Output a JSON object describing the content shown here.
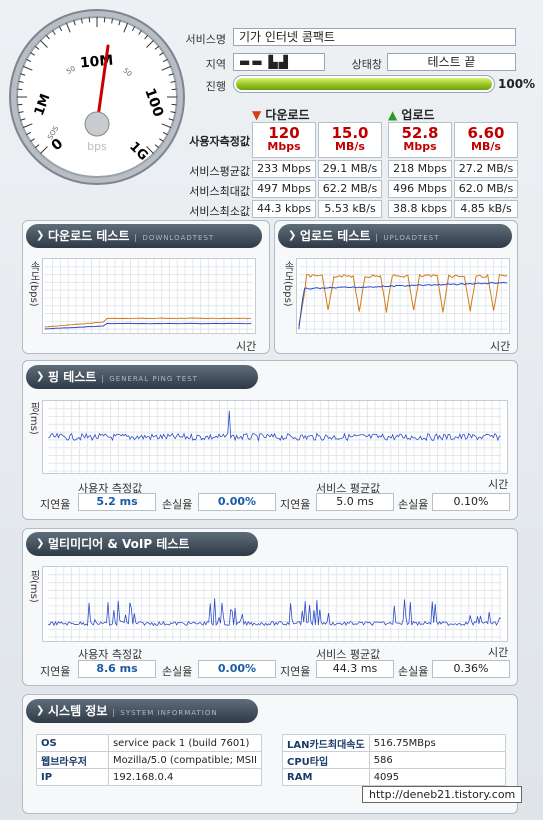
{
  "info": {
    "service_label": "서비스명",
    "service_value": "기가 인터넷 콤팩트",
    "region_label": "지역",
    "region_value": "▬▬ ▙▟",
    "status_label": "상태창",
    "status_value": "테스트 끝",
    "progress_label": "진행",
    "progress_pct": 100,
    "progress_text": "100%"
  },
  "gauge": {
    "ticks": [
      "0",
      "1M",
      "10M",
      "100",
      "1G"
    ],
    "unit": "bps",
    "extra": [
      "SOS",
      "50",
      "50"
    ]
  },
  "speed_table": {
    "download_header": "다운로드",
    "upload_header": "업로드",
    "rows": [
      {
        "label": "사용자측정값",
        "dl_mbps": "120",
        "dl_mbs": "15.0",
        "ul_mbps": "52.8",
        "ul_mbs": "6.60"
      },
      {
        "label": "서비스평균값",
        "dl_mbps": "233 Mbps",
        "dl_mbs": "29.1 MB/s",
        "ul_mbps": "218 Mbps",
        "ul_mbs": "27.2 MB/s"
      },
      {
        "label": "서비스최대값",
        "dl_mbps": "497 Mbps",
        "dl_mbs": "62.2 MB/s",
        "ul_mbps": "496 Mbps",
        "ul_mbs": "62.0 MB/s"
      },
      {
        "label": "서비스최소값",
        "dl_mbps": "44.3 kbps",
        "dl_mbs": "5.53 kB/s",
        "ul_mbps": "38.8 kbps",
        "ul_mbs": "4.85 kB/s"
      }
    ],
    "unit_mbps": "Mbps",
    "unit_mbs": "MB/s"
  },
  "download_test": {
    "title": "다운로드 테스트",
    "subtitle": "DOWNLOADTEST",
    "ylabel": "속도(bps)",
    "xlabel": "시간"
  },
  "upload_test": {
    "title": "업로드 테스트",
    "subtitle": "UPLOADTEST",
    "ylabel": "속도(bps)",
    "xlabel": "시간"
  },
  "ping_test": {
    "title": "핑 테스트",
    "subtitle": "GENERAL PING TEST",
    "ylabel": "핑(ms)",
    "xlabel": "시간",
    "user_label": "사용자 측정값",
    "service_label": "서비스 평균값",
    "latency_label": "지연율",
    "loss_label": "손실율",
    "user_latency": "5.2 ms",
    "user_loss": "0.00%",
    "service_latency": "5.0 ms",
    "service_loss": "0.10%"
  },
  "voip_test": {
    "title": "멀티미디어 & VoIP 테스트",
    "ylabel": "핑(ms)",
    "xlabel": "시간",
    "user_label": "사용자 측정값",
    "service_label": "서비스 평균값",
    "latency_label": "지연율",
    "loss_label": "손실율",
    "user_latency": "8.6 ms",
    "user_loss": "0.00%",
    "service_latency": "44.3 ms",
    "service_loss": "0.36%"
  },
  "system_info": {
    "title": "시스템 정보",
    "subtitle": "SYSTEM INFORMATION",
    "left": [
      {
        "key": "OS",
        "value": "service pack 1 (build 7601)"
      },
      {
        "key": "웹브라우저",
        "value": "Mozilla/5.0 (compatible; MSII"
      },
      {
        "key": "IP",
        "value": "192.168.0.4"
      }
    ],
    "right": [
      {
        "key": "LAN카드최대속도",
        "value": "516.75MBps"
      },
      {
        "key": "CPU타입",
        "value": "586"
      },
      {
        "key": "RAM",
        "value": "4095"
      }
    ]
  },
  "tooltip": "http://deneb21.tistory.com",
  "colors": {
    "accent_red": "#c00000",
    "accent_blue": "#1a5aa8",
    "line_blue": "#2a48c8",
    "line_orange": "#d07a10",
    "progress_green": "#8ec21a"
  }
}
